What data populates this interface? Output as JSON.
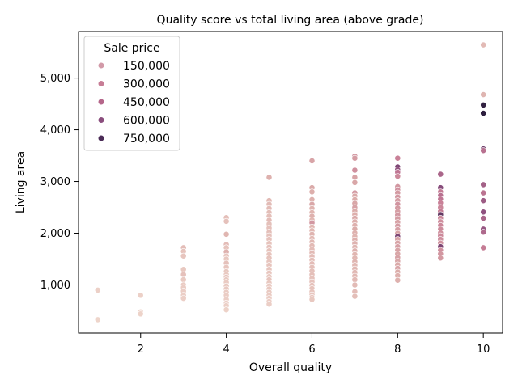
{
  "chart_data": {
    "type": "scatter",
    "title": "Quality score vs total living area (above grade)",
    "xlabel": "Overall quality",
    "ylabel": "Living area",
    "xlim": [
      0.55,
      10.45
    ],
    "ylim": [
      70,
      5900
    ],
    "x_ticks": [
      2,
      4,
      6,
      8,
      10
    ],
    "y_ticks": [
      1000,
      2000,
      3000,
      4000,
      5000
    ],
    "x_tick_labels": [
      "2",
      "4",
      "6",
      "8",
      "10"
    ],
    "y_tick_labels": [
      "1,000",
      "2,000",
      "3,000",
      "4,000",
      "5,000"
    ],
    "grid": false,
    "legend": {
      "title": "Sale price",
      "placement": "top-left",
      "entries": [
        {
          "label": "150,000",
          "color": "#d29aa8"
        },
        {
          "label": "300,000",
          "color": "#c77d96"
        },
        {
          "label": "450,000",
          "color": "#b5668a"
        },
        {
          "label": "600,000",
          "color": "#8a4d7d"
        },
        {
          "label": "750,000",
          "color": "#4b2c57"
        }
      ]
    },
    "color_scale": {
      "min_price": 35000,
      "max_price": 755000,
      "stops": [
        "#efd6cc",
        "#dcaeab",
        "#c77d96",
        "#8a4d7d",
        "#2d1e3e"
      ]
    },
    "points": [
      {
        "x": 1,
        "y": 900,
        "price": 60000
      },
      {
        "x": 1,
        "y": 330,
        "price": 40000
      },
      {
        "x": 2,
        "y": 800,
        "price": 60000
      },
      {
        "x": 2,
        "y": 480,
        "price": 55000
      },
      {
        "x": 2,
        "y": 440,
        "price": 50000
      },
      {
        "x": 3,
        "y": 1720,
        "price": 150000
      },
      {
        "x": 3,
        "y": 1650,
        "price": 120000
      },
      {
        "x": 3,
        "y": 1560,
        "price": 110000
      },
      {
        "x": 3,
        "y": 1300,
        "price": 100000
      },
      {
        "x": 3,
        "y": 1200,
        "price": 130000
      },
      {
        "x": 3,
        "y": 1100,
        "price": 90000
      },
      {
        "x": 3,
        "y": 1000,
        "price": 85000
      },
      {
        "x": 3,
        "y": 950,
        "price": 80000
      },
      {
        "x": 3,
        "y": 880,
        "price": 75000
      },
      {
        "x": 3,
        "y": 800,
        "price": 70000
      },
      {
        "x": 3,
        "y": 740,
        "price": 65000
      },
      {
        "x": 4,
        "y": 2300,
        "price": 140000
      },
      {
        "x": 4,
        "y": 2230,
        "price": 130000
      },
      {
        "x": 4,
        "y": 1980,
        "price": 180000
      },
      {
        "x": 4,
        "y": 1780,
        "price": 150000
      },
      {
        "x": 4,
        "y": 1720,
        "price": 120000
      },
      {
        "x": 4,
        "y": 1640,
        "price": 200000
      },
      {
        "x": 4,
        "y": 1560,
        "price": 110000
      },
      {
        "x": 4,
        "y": 1500,
        "price": 100000
      },
      {
        "x": 4,
        "y": 1420,
        "price": 130000
      },
      {
        "x": 4,
        "y": 1340,
        "price": 110000
      },
      {
        "x": 4,
        "y": 1260,
        "price": 100000
      },
      {
        "x": 4,
        "y": 1200,
        "price": 95000
      },
      {
        "x": 4,
        "y": 1150,
        "price": 120000
      },
      {
        "x": 4,
        "y": 1100,
        "price": 90000
      },
      {
        "x": 4,
        "y": 1050,
        "price": 85000
      },
      {
        "x": 4,
        "y": 980,
        "price": 100000
      },
      {
        "x": 4,
        "y": 920,
        "price": 95000
      },
      {
        "x": 4,
        "y": 860,
        "price": 80000
      },
      {
        "x": 4,
        "y": 800,
        "price": 75000
      },
      {
        "x": 4,
        "y": 720,
        "price": 70000
      },
      {
        "x": 4,
        "y": 650,
        "price": 65000
      },
      {
        "x": 4,
        "y": 600,
        "price": 60000
      },
      {
        "x": 4,
        "y": 520,
        "price": 55000
      },
      {
        "x": 5,
        "y": 3080,
        "price": 200000
      },
      {
        "x": 5,
        "y": 2630,
        "price": 160000
      },
      {
        "x": 5,
        "y": 2560,
        "price": 155000
      },
      {
        "x": 5,
        "y": 2480,
        "price": 150000
      },
      {
        "x": 5,
        "y": 2400,
        "price": 145000
      },
      {
        "x": 5,
        "y": 2330,
        "price": 140000
      },
      {
        "x": 5,
        "y": 2250,
        "price": 150000
      },
      {
        "x": 5,
        "y": 2180,
        "price": 135000
      },
      {
        "x": 5,
        "y": 2100,
        "price": 130000
      },
      {
        "x": 5,
        "y": 2020,
        "price": 140000
      },
      {
        "x": 5,
        "y": 1950,
        "price": 130000
      },
      {
        "x": 5,
        "y": 1880,
        "price": 125000
      },
      {
        "x": 5,
        "y": 1800,
        "price": 120000
      },
      {
        "x": 5,
        "y": 1730,
        "price": 130000
      },
      {
        "x": 5,
        "y": 1660,
        "price": 120000
      },
      {
        "x": 5,
        "y": 1590,
        "price": 115000
      },
      {
        "x": 5,
        "y": 1520,
        "price": 120000
      },
      {
        "x": 5,
        "y": 1450,
        "price": 110000
      },
      {
        "x": 5,
        "y": 1380,
        "price": 115000
      },
      {
        "x": 5,
        "y": 1300,
        "price": 110000
      },
      {
        "x": 5,
        "y": 1230,
        "price": 105000
      },
      {
        "x": 5,
        "y": 1160,
        "price": 100000
      },
      {
        "x": 5,
        "y": 1100,
        "price": 110000
      },
      {
        "x": 5,
        "y": 1040,
        "price": 100000
      },
      {
        "x": 5,
        "y": 980,
        "price": 95000
      },
      {
        "x": 5,
        "y": 920,
        "price": 100000
      },
      {
        "x": 5,
        "y": 860,
        "price": 90000
      },
      {
        "x": 5,
        "y": 800,
        "price": 85000
      },
      {
        "x": 5,
        "y": 740,
        "price": 80000
      },
      {
        "x": 5,
        "y": 680,
        "price": 75000
      },
      {
        "x": 5,
        "y": 630,
        "price": 70000
      },
      {
        "x": 6,
        "y": 3400,
        "price": 250000
      },
      {
        "x": 6,
        "y": 2880,
        "price": 230000
      },
      {
        "x": 6,
        "y": 2800,
        "price": 210000
      },
      {
        "x": 6,
        "y": 2650,
        "price": 200000
      },
      {
        "x": 6,
        "y": 2560,
        "price": 240000
      },
      {
        "x": 6,
        "y": 2480,
        "price": 190000
      },
      {
        "x": 6,
        "y": 2400,
        "price": 180000
      },
      {
        "x": 6,
        "y": 2330,
        "price": 200000
      },
      {
        "x": 6,
        "y": 2260,
        "price": 170000
      },
      {
        "x": 6,
        "y": 2200,
        "price": 300000
      },
      {
        "x": 6,
        "y": 2120,
        "price": 180000
      },
      {
        "x": 6,
        "y": 2050,
        "price": 170000
      },
      {
        "x": 6,
        "y": 1980,
        "price": 190000
      },
      {
        "x": 6,
        "y": 1900,
        "price": 160000
      },
      {
        "x": 6,
        "y": 1830,
        "price": 170000
      },
      {
        "x": 6,
        "y": 1760,
        "price": 160000
      },
      {
        "x": 6,
        "y": 1690,
        "price": 150000
      },
      {
        "x": 6,
        "y": 1620,
        "price": 160000
      },
      {
        "x": 6,
        "y": 1550,
        "price": 150000
      },
      {
        "x": 6,
        "y": 1480,
        "price": 145000
      },
      {
        "x": 6,
        "y": 1410,
        "price": 150000
      },
      {
        "x": 6,
        "y": 1340,
        "price": 140000
      },
      {
        "x": 6,
        "y": 1270,
        "price": 135000
      },
      {
        "x": 6,
        "y": 1200,
        "price": 140000
      },
      {
        "x": 6,
        "y": 1130,
        "price": 130000
      },
      {
        "x": 6,
        "y": 1060,
        "price": 125000
      },
      {
        "x": 6,
        "y": 990,
        "price": 130000
      },
      {
        "x": 6,
        "y": 930,
        "price": 120000
      },
      {
        "x": 6,
        "y": 870,
        "price": 115000
      },
      {
        "x": 6,
        "y": 810,
        "price": 110000
      },
      {
        "x": 6,
        "y": 760,
        "price": 105000
      },
      {
        "x": 6,
        "y": 720,
        "price": 100000
      },
      {
        "x": 7,
        "y": 3490,
        "price": 300000
      },
      {
        "x": 7,
        "y": 3450,
        "price": 280000
      },
      {
        "x": 7,
        "y": 3220,
        "price": 320000
      },
      {
        "x": 7,
        "y": 3080,
        "price": 250000
      },
      {
        "x": 7,
        "y": 2980,
        "price": 240000
      },
      {
        "x": 7,
        "y": 2780,
        "price": 290000
      },
      {
        "x": 7,
        "y": 2720,
        "price": 230000
      },
      {
        "x": 7,
        "y": 2650,
        "price": 220000
      },
      {
        "x": 7,
        "y": 2580,
        "price": 240000
      },
      {
        "x": 7,
        "y": 2500,
        "price": 260000
      },
      {
        "x": 7,
        "y": 2430,
        "price": 220000
      },
      {
        "x": 7,
        "y": 2360,
        "price": 210000
      },
      {
        "x": 7,
        "y": 2290,
        "price": 230000
      },
      {
        "x": 7,
        "y": 2220,
        "price": 210000
      },
      {
        "x": 7,
        "y": 2150,
        "price": 200000
      },
      {
        "x": 7,
        "y": 2080,
        "price": 220000
      },
      {
        "x": 7,
        "y": 2010,
        "price": 200000
      },
      {
        "x": 7,
        "y": 1940,
        "price": 190000
      },
      {
        "x": 7,
        "y": 1870,
        "price": 210000
      },
      {
        "x": 7,
        "y": 1800,
        "price": 195000
      },
      {
        "x": 7,
        "y": 1730,
        "price": 185000
      },
      {
        "x": 7,
        "y": 1660,
        "price": 200000
      },
      {
        "x": 7,
        "y": 1590,
        "price": 180000
      },
      {
        "x": 7,
        "y": 1520,
        "price": 175000
      },
      {
        "x": 7,
        "y": 1450,
        "price": 190000
      },
      {
        "x": 7,
        "y": 1380,
        "price": 170000
      },
      {
        "x": 7,
        "y": 1310,
        "price": 175000
      },
      {
        "x": 7,
        "y": 1240,
        "price": 165000
      },
      {
        "x": 7,
        "y": 1170,
        "price": 170000
      },
      {
        "x": 7,
        "y": 1100,
        "price": 160000
      },
      {
        "x": 7,
        "y": 1000,
        "price": 155000
      },
      {
        "x": 7,
        "y": 870,
        "price": 150000
      },
      {
        "x": 7,
        "y": 780,
        "price": 145000
      },
      {
        "x": 8,
        "y": 3450,
        "price": 380000
      },
      {
        "x": 8,
        "y": 3280,
        "price": 600000
      },
      {
        "x": 8,
        "y": 3230,
        "price": 550000
      },
      {
        "x": 8,
        "y": 3180,
        "price": 420000
      },
      {
        "x": 8,
        "y": 3100,
        "price": 350000
      },
      {
        "x": 8,
        "y": 2900,
        "price": 300000
      },
      {
        "x": 8,
        "y": 2840,
        "price": 320000
      },
      {
        "x": 8,
        "y": 2780,
        "price": 290000
      },
      {
        "x": 8,
        "y": 2700,
        "price": 300000
      },
      {
        "x": 8,
        "y": 2630,
        "price": 280000
      },
      {
        "x": 8,
        "y": 2560,
        "price": 310000
      },
      {
        "x": 8,
        "y": 2490,
        "price": 290000
      },
      {
        "x": 8,
        "y": 2420,
        "price": 270000
      },
      {
        "x": 8,
        "y": 2350,
        "price": 300000
      },
      {
        "x": 8,
        "y": 2280,
        "price": 280000
      },
      {
        "x": 8,
        "y": 2210,
        "price": 260000
      },
      {
        "x": 8,
        "y": 2140,
        "price": 290000
      },
      {
        "x": 8,
        "y": 2070,
        "price": 270000
      },
      {
        "x": 8,
        "y": 2000,
        "price": 250000
      },
      {
        "x": 8,
        "y": 1940,
        "price": 600000
      },
      {
        "x": 8,
        "y": 1880,
        "price": 260000
      },
      {
        "x": 8,
        "y": 1810,
        "price": 250000
      },
      {
        "x": 8,
        "y": 1740,
        "price": 270000
      },
      {
        "x": 8,
        "y": 1670,
        "price": 250000
      },
      {
        "x": 8,
        "y": 1600,
        "price": 240000
      },
      {
        "x": 8,
        "y": 1530,
        "price": 260000
      },
      {
        "x": 8,
        "y": 1460,
        "price": 240000
      },
      {
        "x": 8,
        "y": 1390,
        "price": 230000
      },
      {
        "x": 8,
        "y": 1320,
        "price": 250000
      },
      {
        "x": 8,
        "y": 1250,
        "price": 220000
      },
      {
        "x": 8,
        "y": 1180,
        "price": 210000
      },
      {
        "x": 8,
        "y": 1090,
        "price": 200000
      },
      {
        "x": 9,
        "y": 3140,
        "price": 480000
      },
      {
        "x": 9,
        "y": 2880,
        "price": 580000
      },
      {
        "x": 9,
        "y": 2800,
        "price": 400000
      },
      {
        "x": 9,
        "y": 2730,
        "price": 440000
      },
      {
        "x": 9,
        "y": 2660,
        "price": 420000
      },
      {
        "x": 9,
        "y": 2590,
        "price": 380000
      },
      {
        "x": 9,
        "y": 2500,
        "price": 360000
      },
      {
        "x": 9,
        "y": 2420,
        "price": 400000
      },
      {
        "x": 9,
        "y": 2360,
        "price": 650000
      },
      {
        "x": 9,
        "y": 2290,
        "price": 350000
      },
      {
        "x": 9,
        "y": 2220,
        "price": 330000
      },
      {
        "x": 9,
        "y": 2150,
        "price": 360000
      },
      {
        "x": 9,
        "y": 2080,
        "price": 340000
      },
      {
        "x": 9,
        "y": 2010,
        "price": 320000
      },
      {
        "x": 9,
        "y": 1950,
        "price": 350000
      },
      {
        "x": 9,
        "y": 1880,
        "price": 330000
      },
      {
        "x": 9,
        "y": 1810,
        "price": 310000
      },
      {
        "x": 9,
        "y": 1740,
        "price": 600000
      },
      {
        "x": 9,
        "y": 1670,
        "price": 320000
      },
      {
        "x": 9,
        "y": 1600,
        "price": 300000
      },
      {
        "x": 9,
        "y": 1520,
        "price": 290000
      },
      {
        "x": 10,
        "y": 5640,
        "price": 160000
      },
      {
        "x": 10,
        "y": 4680,
        "price": 185000
      },
      {
        "x": 10,
        "y": 4480,
        "price": 745000
      },
      {
        "x": 10,
        "y": 4320,
        "price": 755000
      },
      {
        "x": 10,
        "y": 3630,
        "price": 625000
      },
      {
        "x": 10,
        "y": 3600,
        "price": 440000
      },
      {
        "x": 10,
        "y": 2940,
        "price": 500000
      },
      {
        "x": 10,
        "y": 2780,
        "price": 430000
      },
      {
        "x": 10,
        "y": 2630,
        "price": 520000
      },
      {
        "x": 10,
        "y": 2410,
        "price": 560000
      },
      {
        "x": 10,
        "y": 2290,
        "price": 480000
      },
      {
        "x": 10,
        "y": 2080,
        "price": 540000
      },
      {
        "x": 10,
        "y": 2020,
        "price": 470000
      },
      {
        "x": 10,
        "y": 1720,
        "price": 400000
      }
    ]
  }
}
